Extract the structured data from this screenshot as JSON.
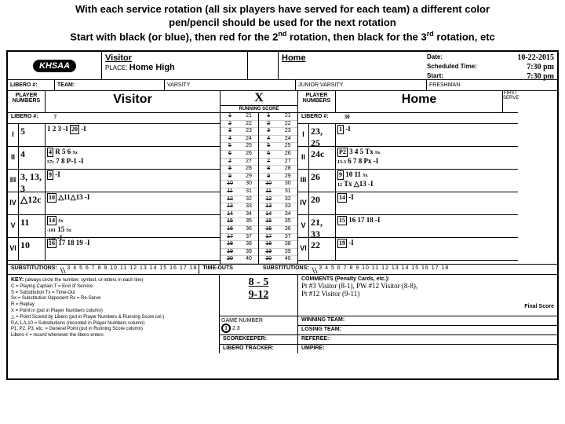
{
  "header": {
    "line1": "With each service rotation (all six players have served for each team) a different color",
    "line2": "pen/pencil should be used for the next rotation",
    "line3_a": "Start with black (or blue), then red for the 2",
    "line3_sup1": "nd",
    "line3_b": " rotation, then black for the 3",
    "line3_sup2": "rd",
    "line3_c": " rotation, etc"
  },
  "meta": {
    "visitor_label": "Visitor",
    "home_label": "Home",
    "place_label": "PLACE:",
    "place_value": "Home High",
    "date_label": "Date:",
    "date_value": "10-22-2015",
    "sched_label": "Scheduled Time:",
    "sched_value": "7:30 pm",
    "start_label": "Start:",
    "start_value": "7:30 pm"
  },
  "categories": [
    "LIBERO #:",
    "TEAM:",
    "VARSITY",
    "JUNIOR VARSITY",
    "FRESHMAN"
  ],
  "visitor": {
    "team_name": "Visitor",
    "libero_num": "7",
    "rows": [
      {
        "roman": "I",
        "num": "5",
        "score": "1 2 3 -I <span class='box'>20</span> -I"
      },
      {
        "roman": "II",
        "num": "4",
        "score": "<span class='box'>4</span> R 5 6 <span style='font-size:6px'>Sx<br>S7c</span> 7 8 P-1 -I"
      },
      {
        "roman": "III",
        "num": "3, 13, 3",
        "score": "<span class='box'>9</span> -I"
      },
      {
        "roman": "IV",
        "num": "△12c",
        "score": "<span class='box'>10</span> △11△13 -I"
      },
      {
        "roman": "V",
        "num": "11",
        "score": "<span class='box'>14</span> <span style='font-size:6px'>Sx<br>-101</span> 15 <span style='font-size:6px'>Sx<br>-110</span> -I"
      },
      {
        "roman": "VI",
        "num": "10",
        "score": "<span class='box'>16</span> 17 18 19 -I"
      }
    ],
    "sub_nums": "3 4 5 6 7 8 9 10 11 12 13 14 15 16 17 18",
    "sub_mark": "\\\\"
  },
  "home": {
    "team_name": "Home",
    "libero_num": "30",
    "rows": [
      {
        "roman": "I",
        "num": "23, 25",
        "score": "<span class='box'>1</span> -I"
      },
      {
        "roman": "II",
        "num": "24c",
        "score": "<span class='box'>P2</span> 3 4 5 Tx <span style='font-size:6px'>Sx<br>13-3</span> 6 7 8 Px -I"
      },
      {
        "roman": "III",
        "num": "26",
        "score": "<span class='box'>9</span> 10 11 <span style='font-size:6px'>Sx<br>12</span> Tx △13 -I"
      },
      {
        "roman": "IV",
        "num": "20",
        "score": "<span class='box'>14</span> -I"
      },
      {
        "roman": "V",
        "num": "21, 33",
        "score": "<span class='box'>15</span> 16 17 18 -I"
      },
      {
        "roman": "VI",
        "num": "22",
        "score": "<span class='box'>19</span> -I"
      }
    ],
    "sub_nums": "3 4 5 6 7 8 9 10 11 12 13 14 15 16 17 18",
    "sub_mark": "\\\\"
  },
  "first_serve_x": "X",
  "first_serve_label": "FIRST SERVE",
  "running_label": "RUNNING SCORE",
  "running_cols": [
    [
      "1",
      "2",
      "3",
      "4",
      "5",
      "6",
      "7",
      "8",
      "9",
      "10",
      "11",
      "12",
      "13",
      "14",
      "15",
      "16",
      "17",
      "18",
      "19",
      "20"
    ],
    [
      "21",
      "22",
      "23",
      "24",
      "25",
      "26",
      "27",
      "28",
      "29",
      "30",
      "31",
      "32",
      "33",
      "34",
      "35",
      "36",
      "37",
      "38",
      "39",
      "40"
    ]
  ],
  "scores": {
    "s1": "8 - 5",
    "s2": "9-12"
  },
  "game_number_label": "GAME NUMBER",
  "game_selected": "1",
  "game_others": "2   3",
  "comments_hdr": "COMMENTS (Penalty Cards, etc.):",
  "comments": [
    "Pt #3 Visitor (8-1), PW #12 Visitor (8-8),",
    "Pt #12 Visitor (9-11)"
  ],
  "key": {
    "hdr": "KEY:",
    "sub": "(always circle the number, symbol, or letters in each line)",
    "lines": [
      "C = Playing Captain        T = End of Service",
      "S = Substitution           Tx = Time-Out",
      "Sx = Substitution Opponent Rx = Re-Serve",
      "R = Replay",
      "X = Point in  (put in Player Numbers column)",
      "△ = Point Scored by Libero (put in Player Numbers &amp; Running Score col.)",
      "P,A,1,A,10 = Substitutions (recorded in Player Numbers column)",
      "P1, P2, P3, etc. = General Point (put in Running Score column)",
      "Libero # = record whenever the libero enters"
    ]
  },
  "labels": {
    "player_numbers": "PLAYER NUMBERS",
    "substitutions": "SUBSTITUTIONS:",
    "timeouts": "TIME-OUTS",
    "scorekeeper": "SCOREKEEPER:",
    "libero_tracker": "LIBERO TRACKER:",
    "winning": "WINNING TEAM:",
    "losing": "LOSING TEAM:",
    "referee": "REFEREE:",
    "umpire": "UMPIRE:",
    "final_score": "Final Score"
  }
}
